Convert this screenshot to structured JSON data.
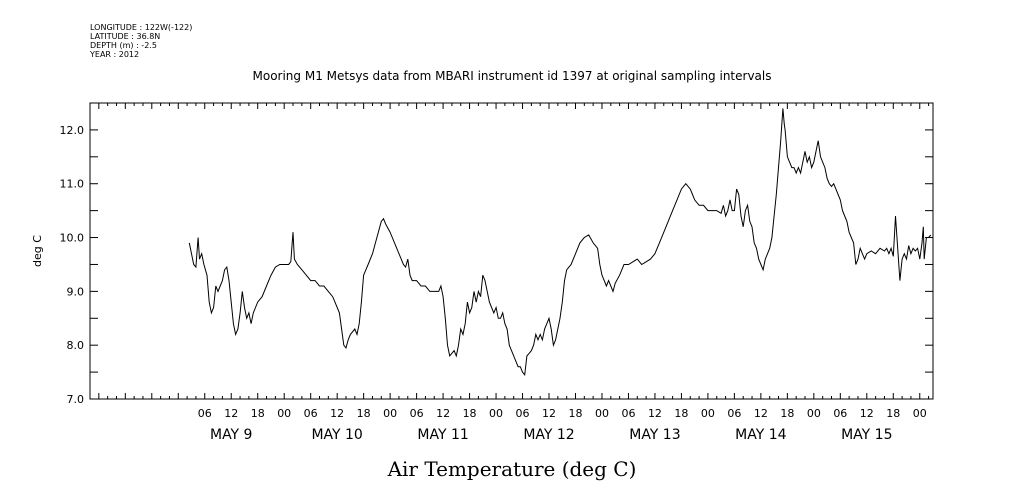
{
  "header": {
    "metadata_lines": [
      "LONGITUDE : 122W(-122)",
      "LATITUDE : 36.8N",
      "DEPTH (m) : -2.5",
      "YEAR : 2012"
    ]
  },
  "chart_data": {
    "type": "line",
    "title": "Mooring M1 Metsys data from MBARI instrument id 1397 at original sampling intervals",
    "xlabel": "Air Temperature (deg C)",
    "ylabel": "deg C",
    "x_units": "hours since MAY 9 00:00, 2012",
    "xlim": [
      -20,
      171
    ],
    "ylim": [
      7.0,
      12.5
    ],
    "y_ticks": [
      "7.0",
      "8.0",
      "9.0",
      "10.0",
      "11.0",
      "12.0"
    ],
    "x_hour_ticks": [
      {
        "x": 6,
        "label": "06"
      },
      {
        "x": 12,
        "label": "12"
      },
      {
        "x": 18,
        "label": "18"
      },
      {
        "x": 24,
        "label": "00"
      },
      {
        "x": 30,
        "label": "06"
      },
      {
        "x": 36,
        "label": "12"
      },
      {
        "x": 42,
        "label": "18"
      },
      {
        "x": 48,
        "label": "00"
      },
      {
        "x": 54,
        "label": "06"
      },
      {
        "x": 60,
        "label": "12"
      },
      {
        "x": 66,
        "label": "18"
      },
      {
        "x": 72,
        "label": "00"
      },
      {
        "x": 78,
        "label": "06"
      },
      {
        "x": 84,
        "label": "12"
      },
      {
        "x": 90,
        "label": "18"
      },
      {
        "x": 96,
        "label": "00"
      },
      {
        "x": 102,
        "label": "06"
      },
      {
        "x": 108,
        "label": "12"
      },
      {
        "x": 114,
        "label": "18"
      },
      {
        "x": 120,
        "label": "00"
      },
      {
        "x": 126,
        "label": "06"
      },
      {
        "x": 132,
        "label": "12"
      },
      {
        "x": 138,
        "label": "18"
      },
      {
        "x": 144,
        "label": "00"
      },
      {
        "x": 150,
        "label": "06"
      },
      {
        "x": 156,
        "label": "12"
      },
      {
        "x": 162,
        "label": "18"
      },
      {
        "x": 168,
        "label": "00"
      }
    ],
    "day_labels": [
      {
        "x": 12,
        "label": "MAY  9"
      },
      {
        "x": 36,
        "label": "MAY 10"
      },
      {
        "x": 60,
        "label": "MAY 11"
      },
      {
        "x": 84,
        "label": "MAY 12"
      },
      {
        "x": 108,
        "label": "MAY 13"
      },
      {
        "x": 132,
        "label": "MAY 14"
      },
      {
        "x": 156,
        "label": "MAY 15"
      }
    ],
    "series": [
      {
        "color": "#000000",
        "points": [
          [
            2.5,
            9.9
          ],
          [
            3.0,
            9.7
          ],
          [
            3.5,
            9.5
          ],
          [
            4.0,
            9.45
          ],
          [
            4.5,
            10.0
          ],
          [
            4.8,
            9.6
          ],
          [
            5.3,
            9.7
          ],
          [
            5.8,
            9.5
          ],
          [
            6.5,
            9.3
          ],
          [
            7.0,
            8.8
          ],
          [
            7.5,
            8.6
          ],
          [
            8.0,
            8.7
          ],
          [
            8.5,
            9.1
          ],
          [
            9.0,
            9.0
          ],
          [
            9.5,
            9.1
          ],
          [
            10.0,
            9.2
          ],
          [
            10.5,
            9.4
          ],
          [
            11.0,
            9.45
          ],
          [
            11.5,
            9.2
          ],
          [
            12.0,
            8.8
          ],
          [
            12.5,
            8.4
          ],
          [
            13.0,
            8.2
          ],
          [
            13.5,
            8.3
          ],
          [
            14.0,
            8.6
          ],
          [
            14.5,
            9.0
          ],
          [
            15.0,
            8.7
          ],
          [
            15.5,
            8.5
          ],
          [
            16.0,
            8.6
          ],
          [
            16.5,
            8.4
          ],
          [
            17.0,
            8.6
          ],
          [
            18.0,
            8.8
          ],
          [
            19.0,
            8.9
          ],
          [
            20.0,
            9.1
          ],
          [
            21.0,
            9.3
          ],
          [
            22.0,
            9.45
          ],
          [
            23.0,
            9.5
          ],
          [
            24.0,
            9.5
          ],
          [
            25.0,
            9.5
          ],
          [
            25.5,
            9.55
          ],
          [
            26.0,
            10.1
          ],
          [
            26.3,
            9.6
          ],
          [
            27.0,
            9.5
          ],
          [
            28.0,
            9.4
          ],
          [
            29.0,
            9.3
          ],
          [
            30.0,
            9.2
          ],
          [
            31.0,
            9.2
          ],
          [
            32.0,
            9.1
          ],
          [
            33.0,
            9.1
          ],
          [
            34.0,
            9.0
          ],
          [
            35.0,
            8.9
          ],
          [
            36.0,
            8.7
          ],
          [
            36.5,
            8.6
          ],
          [
            37.0,
            8.3
          ],
          [
            37.5,
            8.0
          ],
          [
            38.0,
            7.95
          ],
          [
            38.5,
            8.1
          ],
          [
            39.0,
            8.2
          ],
          [
            40.0,
            8.3
          ],
          [
            40.5,
            8.2
          ],
          [
            41.0,
            8.4
          ],
          [
            41.5,
            8.8
          ],
          [
            42.0,
            9.3
          ],
          [
            43.0,
            9.5
          ],
          [
            44.0,
            9.7
          ],
          [
            45.0,
            10.0
          ],
          [
            46.0,
            10.3
          ],
          [
            46.5,
            10.35
          ],
          [
            47.0,
            10.25
          ],
          [
            48.0,
            10.1
          ],
          [
            50.5,
            9.6
          ],
          [
            51.0,
            9.5
          ],
          [
            51.5,
            9.45
          ],
          [
            52.0,
            9.6
          ],
          [
            52.5,
            9.3
          ],
          [
            53.0,
            9.2
          ],
          [
            54.0,
            9.2
          ],
          [
            55.0,
            9.1
          ],
          [
            56.0,
            9.1
          ],
          [
            57.0,
            9.0
          ],
          [
            58.0,
            9.0
          ],
          [
            59.0,
            9.0
          ],
          [
            59.5,
            9.1
          ],
          [
            60.0,
            8.9
          ],
          [
            60.5,
            8.5
          ],
          [
            61.0,
            8.0
          ],
          [
            61.5,
            7.8
          ],
          [
            62.0,
            7.85
          ],
          [
            62.5,
            7.9
          ],
          [
            63.0,
            7.8
          ],
          [
            63.5,
            8.0
          ],
          [
            64.0,
            8.3
          ],
          [
            64.5,
            8.2
          ],
          [
            65.0,
            8.4
          ],
          [
            65.5,
            8.8
          ],
          [
            66.0,
            8.6
          ],
          [
            66.5,
            8.7
          ],
          [
            67.0,
            9.0
          ],
          [
            67.5,
            8.8
          ],
          [
            68.0,
            9.0
          ],
          [
            68.5,
            8.9
          ],
          [
            69.0,
            9.3
          ],
          [
            69.5,
            9.2
          ],
          [
            70.0,
            9.0
          ],
          [
            70.5,
            8.8
          ],
          [
            71.0,
            8.7
          ],
          [
            71.5,
            8.6
          ],
          [
            72.0,
            8.7
          ],
          [
            72.5,
            8.5
          ],
          [
            73.0,
            8.5
          ],
          [
            73.5,
            8.6
          ],
          [
            74.0,
            8.4
          ],
          [
            74.5,
            8.3
          ],
          [
            75.0,
            8.0
          ],
          [
            75.5,
            7.9
          ],
          [
            76.0,
            7.8
          ],
          [
            76.5,
            7.7
          ],
          [
            77.0,
            7.6
          ],
          [
            77.5,
            7.6
          ],
          [
            78.0,
            7.5
          ],
          [
            78.5,
            7.45
          ],
          [
            79.0,
            7.8
          ],
          [
            79.5,
            7.85
          ],
          [
            80.0,
            7.9
          ],
          [
            80.5,
            8.0
          ],
          [
            81.0,
            8.2
          ],
          [
            81.5,
            8.1
          ],
          [
            82.0,
            8.2
          ],
          [
            82.5,
            8.1
          ],
          [
            83.0,
            8.3
          ],
          [
            83.5,
            8.4
          ],
          [
            84.0,
            8.5
          ],
          [
            84.5,
            8.3
          ],
          [
            85.0,
            8.0
          ],
          [
            85.5,
            8.1
          ],
          [
            86.0,
            8.3
          ],
          [
            86.5,
            8.5
          ],
          [
            87.0,
            8.8
          ],
          [
            87.5,
            9.2
          ],
          [
            88.0,
            9.4
          ],
          [
            89.0,
            9.5
          ],
          [
            90.0,
            9.7
          ],
          [
            91.0,
            9.9
          ],
          [
            92.0,
            10.0
          ],
          [
            93.0,
            10.05
          ],
          [
            94.0,
            9.9
          ],
          [
            95.0,
            9.8
          ],
          [
            95.5,
            9.5
          ],
          [
            96.0,
            9.3
          ],
          [
            96.5,
            9.2
          ],
          [
            97.0,
            9.1
          ],
          [
            97.5,
            9.2
          ],
          [
            98.0,
            9.1
          ],
          [
            98.5,
            9.0
          ],
          [
            99.0,
            9.15
          ],
          [
            100.0,
            9.3
          ],
          [
            101.0,
            9.5
          ],
          [
            102.0,
            9.5
          ],
          [
            103.0,
            9.55
          ],
          [
            104.0,
            9.6
          ],
          [
            105.0,
            9.5
          ],
          [
            106.0,
            9.55
          ],
          [
            107.0,
            9.6
          ],
          [
            108.0,
            9.7
          ],
          [
            109.0,
            9.9
          ],
          [
            110.0,
            10.1
          ],
          [
            111.0,
            10.3
          ],
          [
            112.0,
            10.5
          ],
          [
            113.0,
            10.7
          ],
          [
            114.0,
            10.9
          ],
          [
            115.0,
            11.0
          ],
          [
            116.0,
            10.9
          ],
          [
            116.5,
            10.8
          ],
          [
            117.0,
            10.7
          ],
          [
            118.0,
            10.6
          ],
          [
            119.0,
            10.6
          ],
          [
            120.0,
            10.5
          ],
          [
            121.0,
            10.5
          ],
          [
            122.0,
            10.5
          ],
          [
            123.0,
            10.45
          ],
          [
            123.5,
            10.6
          ],
          [
            124.0,
            10.4
          ],
          [
            124.5,
            10.5
          ],
          [
            125.0,
            10.7
          ],
          [
            125.5,
            10.5
          ],
          [
            126.0,
            10.5
          ],
          [
            126.5,
            10.9
          ],
          [
            127.0,
            10.8
          ],
          [
            127.5,
            10.4
          ],
          [
            128.0,
            10.2
          ],
          [
            128.5,
            10.5
          ],
          [
            129.0,
            10.6
          ],
          [
            129.5,
            10.3
          ],
          [
            130.0,
            10.2
          ],
          [
            130.5,
            9.9
          ],
          [
            131.0,
            9.8
          ],
          [
            131.5,
            9.6
          ],
          [
            132.0,
            9.5
          ],
          [
            132.5,
            9.4
          ],
          [
            133.0,
            9.6
          ],
          [
            133.5,
            9.7
          ],
          [
            134.0,
            9.8
          ],
          [
            134.5,
            10.0
          ],
          [
            135.0,
            10.4
          ],
          [
            135.5,
            10.8
          ],
          [
            136.0,
            11.3
          ],
          [
            136.5,
            11.8
          ],
          [
            137.0,
            12.4
          ],
          [
            137.3,
            12.1
          ],
          [
            137.5,
            12.0
          ],
          [
            138.0,
            11.5
          ],
          [
            138.5,
            11.4
          ],
          [
            139.0,
            11.3
          ],
          [
            139.5,
            11.3
          ],
          [
            140.0,
            11.2
          ],
          [
            140.5,
            11.3
          ],
          [
            141.0,
            11.2
          ],
          [
            141.5,
            11.4
          ],
          [
            142.0,
            11.6
          ],
          [
            142.5,
            11.4
          ],
          [
            143.0,
            11.5
          ],
          [
            143.5,
            11.3
          ],
          [
            144.0,
            11.4
          ],
          [
            144.5,
            11.6
          ],
          [
            145.0,
            11.8
          ],
          [
            145.5,
            11.5
          ],
          [
            146.0,
            11.4
          ],
          [
            146.5,
            11.3
          ],
          [
            147.0,
            11.1
          ],
          [
            147.5,
            11.0
          ],
          [
            148.0,
            10.95
          ],
          [
            148.5,
            11.0
          ],
          [
            149.0,
            10.9
          ],
          [
            149.5,
            10.8
          ],
          [
            150.0,
            10.7
          ],
          [
            150.5,
            10.5
          ],
          [
            151.0,
            10.4
          ],
          [
            151.5,
            10.3
          ],
          [
            152.0,
            10.1
          ],
          [
            152.5,
            10.0
          ],
          [
            153.0,
            9.9
          ],
          [
            153.5,
            9.5
          ],
          [
            154.0,
            9.6
          ],
          [
            154.5,
            9.8
          ],
          [
            155.0,
            9.7
          ],
          [
            155.5,
            9.6
          ],
          [
            156.0,
            9.7
          ],
          [
            157.0,
            9.75
          ],
          [
            158.0,
            9.7
          ],
          [
            159.0,
            9.8
          ],
          [
            160.0,
            9.75
          ],
          [
            160.5,
            9.8
          ],
          [
            161.0,
            9.7
          ],
          [
            161.5,
            9.8
          ],
          [
            162.0,
            9.65
          ],
          [
            162.5,
            10.4
          ],
          [
            163.0,
            9.8
          ],
          [
            163.5,
            9.2
          ],
          [
            164.0,
            9.6
          ],
          [
            164.5,
            9.7
          ],
          [
            165.0,
            9.6
          ],
          [
            165.5,
            9.85
          ],
          [
            166.0,
            9.7
          ],
          [
            166.5,
            9.8
          ],
          [
            167.0,
            9.75
          ],
          [
            167.5,
            9.8
          ],
          [
            168.0,
            9.6
          ],
          [
            168.5,
            9.9
          ],
          [
            168.8,
            10.2
          ],
          [
            169.0,
            9.6
          ],
          [
            169.5,
            10.0
          ],
          [
            170.0,
            10.0
          ],
          [
            170.5,
            10.05
          ]
        ]
      }
    ]
  }
}
